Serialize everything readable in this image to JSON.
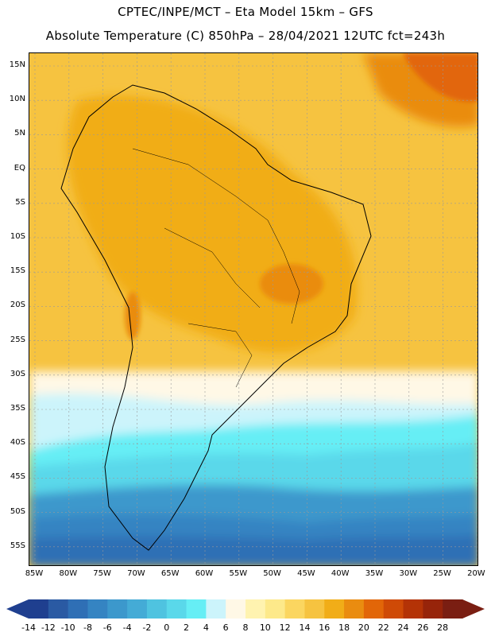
{
  "header": {
    "line1": "CPTEC/INPE/MCT –  Eta Model 15km – GFS",
    "line2": "Absolute Temperature (C) 850hPa – 28/04/2021 12UTC fct=243h"
  },
  "axes": {
    "lat_labels": [
      "15N",
      "10N",
      "5N",
      "EQ",
      "5S",
      "10S",
      "15S",
      "20S",
      "25S",
      "30S",
      "35S",
      "40S",
      "45S",
      "50S",
      "55S"
    ],
    "lon_labels": [
      "85W",
      "80W",
      "75W",
      "70W",
      "65W",
      "60W",
      "55W",
      "50W",
      "45W",
      "40W",
      "35W",
      "30W",
      "25W",
      "20W"
    ],
    "lat_range": [
      -58,
      17
    ],
    "lon_range": [
      -86,
      -20
    ]
  },
  "colorbar": {
    "labels": [
      "-14",
      "-12",
      "-10",
      "-8",
      "-6",
      "-4",
      "-2",
      "0",
      "2",
      "4",
      "6",
      "8",
      "10",
      "12",
      "14",
      "16",
      "18",
      "20",
      "22",
      "24",
      "26",
      "28"
    ],
    "colors": [
      "#1f3f8f",
      "#2a5aa3",
      "#2f6fb5",
      "#3584c2",
      "#3c98cc",
      "#44abd6",
      "#4fc3e0",
      "#5ad8ea",
      "#66eef5",
      "#ccf4fb",
      "#fff8e6",
      "#fff3b0",
      "#fde98a",
      "#fbd660",
      "#f6c340",
      "#f1ad18",
      "#ea8c10",
      "#e26608",
      "#cf4a06",
      "#b43306",
      "#97240a",
      "#7a1e12"
    ],
    "under_color": "#1f3f8f",
    "over_color": "#7a1e12"
  }
}
